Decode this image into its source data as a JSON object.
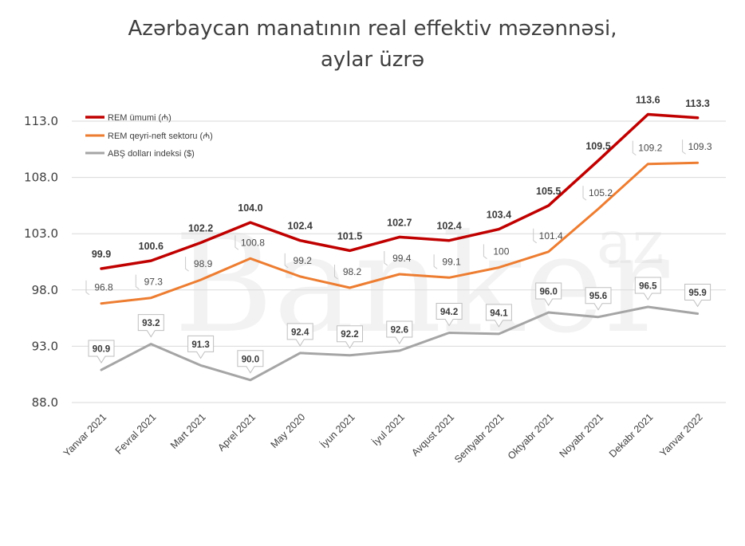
{
  "chart_data": {
    "type": "line",
    "title_lines": [
      "Azərbaycan manatının real effektiv məzənnəsi,",
      "aylar üzrə"
    ],
    "categories": [
      "Yanvar 2021",
      "Fevral  2021",
      "Mart  2021",
      "Aprel  2021",
      "May 2020",
      "İyun  2021",
      "İyul  2021",
      "Avqust  2021",
      "Sentyabr  2021",
      "Oktyabr  2021",
      "Noyabr 2021",
      "Dekabr 2021",
      "Yanvar 2022"
    ],
    "ylim": [
      88.0,
      113.0
    ],
    "yticks": [
      "88.0",
      "93.0",
      "98.0",
      "103.0",
      "108.0",
      "113.0"
    ],
    "grid": true,
    "legend_position": "top-left",
    "series": [
      {
        "name": "REM ümumi (₼)",
        "color": "#c00000",
        "values": [
          99.9,
          100.6,
          102.2,
          104.0,
          102.4,
          101.5,
          102.7,
          102.4,
          103.4,
          105.5,
          109.5,
          113.6,
          113.3
        ],
        "labels": [
          "99.9",
          "100.6",
          "102.2",
          "104.0",
          "102.4",
          "101.5",
          "102.7",
          "102.4",
          "103.4",
          "105.5",
          "109.5",
          "113.6",
          "113.3"
        ]
      },
      {
        "name": "REM qeyri-neft sektoru (₼)",
        "color": "#ed7d31",
        "values": [
          96.8,
          97.3,
          98.9,
          100.8,
          99.2,
          98.2,
          99.4,
          99.1,
          100.0,
          101.4,
          105.2,
          109.2,
          109.3
        ],
        "labels": [
          "96.8",
          "97.3",
          "98.9",
          "100.8",
          "99.2",
          "98.2",
          "99.4",
          "99.1",
          "100",
          "101.4",
          "105.2",
          "109.2",
          "109.3"
        ]
      },
      {
        "name": "ABŞ dolları indeksi ($)",
        "color": "#a5a5a5",
        "values": [
          90.9,
          93.2,
          91.3,
          90.0,
          92.4,
          92.2,
          92.6,
          94.2,
          94.1,
          96.0,
          95.6,
          96.5,
          95.9
        ],
        "labels": [
          "90.9",
          "93.2",
          "91.3",
          "90.0",
          "92.4",
          "92.2",
          "92.6",
          "94.2",
          "94.1",
          "96.0",
          "95.6",
          "96.5",
          "95.9"
        ]
      }
    ]
  },
  "watermark": {
    "text": "Banker",
    "suffix": "az",
    "color": "#c8c8c8"
  }
}
